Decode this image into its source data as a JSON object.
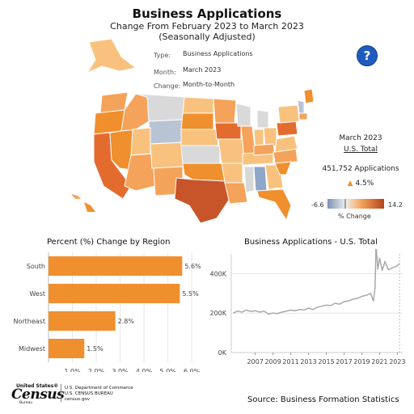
{
  "header": {
    "title": "Business Applications",
    "subtitle1": "Change From February 2023 to March 2023",
    "subtitle2": "(Seasonally Adjusted)",
    "help_icon": "?"
  },
  "filters": {
    "type_label": "Type:",
    "type_value": "Business Applications",
    "month_label": "Month:",
    "month_value": "March 2023",
    "change_label": "Change:",
    "change_value": "Month-to-Month"
  },
  "summary": {
    "month": "March 2023",
    "scope": "U.S. Total",
    "applications": "451,752 Applications",
    "change": "4.5%",
    "change_direction_icon": "up-triangle-icon"
  },
  "legend": {
    "min": "-6.6",
    "max": "14.2",
    "label": "% Change",
    "color_low": "#7b93b5",
    "color_mid": "#eeeeee",
    "color_high": "#b4431a"
  },
  "colors": {
    "bar": "#f08f2e",
    "line": "#a9a9a9",
    "accent_up": "#f08f2e"
  },
  "region_chart": {
    "title": "Percent (%) Change by Region"
  },
  "trend_chart": {
    "title": "Business Applications - U.S. Total"
  },
  "footer": {
    "source": "Source: Business Formation Statistics",
    "logo_top": "United States®",
    "logo_name": "Census",
    "logo_bureau": "Bureau",
    "dept_line1": "U.S. Department of Commerce",
    "dept_line2": "U.S. CENSUS BUREAU",
    "dept_line3": "census.gov"
  },
  "chart_data": [
    {
      "type": "bar",
      "orientation": "horizontal",
      "title": "Percent (%) Change by Region",
      "categories": [
        "South",
        "West",
        "Northeast",
        "Midwest"
      ],
      "values": [
        5.6,
        5.5,
        2.8,
        1.5
      ],
      "value_labels": [
        "5.6%",
        "5.5%",
        "2.8%",
        "1.5%"
      ],
      "xlim": [
        0,
        6.3
      ],
      "xticks": [
        1.0,
        2.0,
        3.0,
        4.0,
        5.0,
        6.0
      ],
      "xtick_labels": [
        "1.0%",
        "2.0%",
        "3.0%",
        "4.0%",
        "5.0%",
        "6.0%"
      ],
      "grid": true
    },
    {
      "type": "line",
      "title": "Business Applications - U.S. Total",
      "ylim": [
        0,
        500000
      ],
      "yticks": [
        0,
        200000,
        400000
      ],
      "ytick_labels": [
        "0K",
        "200K",
        "400K"
      ],
      "xticks": [
        2007,
        2009,
        2011,
        2013,
        2015,
        2017,
        2019,
        2021,
        2023
      ],
      "xtick_labels": [
        "2007",
        "2009",
        "2011",
        "2013",
        "2015",
        "2017",
        "2019",
        "2021",
        "2023"
      ],
      "series": [
        {
          "x": [
            2004.5,
            2005.0,
            2005.5,
            2006.0,
            2006.5,
            2007.0,
            2007.5,
            2008.0,
            2008.5,
            2009.0,
            2009.5,
            2010.0,
            2010.5,
            2011.0,
            2011.5,
            2012.0,
            2012.5,
            2013.0,
            2013.5,
            2014.0,
            2014.5,
            2015.0,
            2015.5,
            2016.0,
            2016.5,
            2017.0,
            2017.5,
            2018.0,
            2018.5,
            2019.0,
            2019.5,
            2020.0,
            2020.3,
            2020.5,
            2020.6,
            2020.8,
            2021.0,
            2021.3,
            2021.6,
            2022.0,
            2022.5,
            2023.0,
            2023.25
          ],
          "y": [
            200000,
            210000,
            205000,
            215000,
            208000,
            212000,
            205000,
            210000,
            195000,
            200000,
            198000,
            205000,
            210000,
            215000,
            212000,
            218000,
            215000,
            225000,
            218000,
            230000,
            235000,
            240000,
            238000,
            250000,
            245000,
            258000,
            262000,
            270000,
            275000,
            285000,
            290000,
            300000,
            260000,
            330000,
            550000,
            420000,
            480000,
            415000,
            460000,
            420000,
            430000,
            440000,
            452000
          ]
        }
      ],
      "grid": true
    }
  ]
}
